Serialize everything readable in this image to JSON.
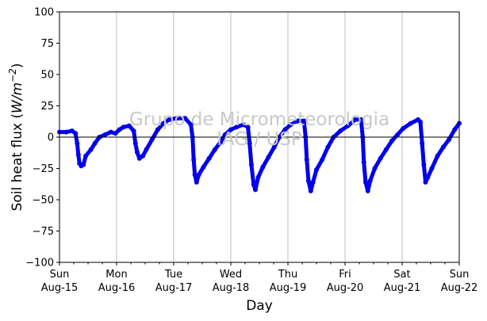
{
  "chart_data": {
    "type": "scatter",
    "title": "",
    "xlabel": "Day",
    "ylabel": "Soil heat flux (W/m⁻²)",
    "ylabel_parts": {
      "prefix": "Soil heat flux (",
      "italic": "W/m",
      "sup": "−2",
      "suffix": ")"
    },
    "ylim": [
      -100,
      100
    ],
    "xlim_days": [
      0,
      7
    ],
    "yticks": [
      -100,
      -75,
      -50,
      -25,
      0,
      25,
      50,
      75,
      100
    ],
    "xticks": [
      {
        "day": 0,
        "line1": "Sun",
        "line2": "Aug-15"
      },
      {
        "day": 1,
        "line1": "Mon",
        "line2": "Aug-16"
      },
      {
        "day": 2,
        "line1": "Tue",
        "line2": "Aug-17"
      },
      {
        "day": 3,
        "line1": "Wed",
        "line2": "Aug-18"
      },
      {
        "day": 4,
        "line1": "Thu",
        "line2": "Aug-19"
      },
      {
        "day": 5,
        "line1": "Fri",
        "line2": "Aug-20"
      },
      {
        "day": 6,
        "line1": "Sat",
        "line2": "Aug-21"
      },
      {
        "day": 7,
        "line1": "Sun",
        "line2": "Aug-22"
      }
    ],
    "grid": "vertical",
    "zero_line": true,
    "series": [
      {
        "color": "#0000ee",
        "points": [
          [
            0.0,
            4
          ],
          [
            0.12,
            4
          ],
          [
            0.22,
            5
          ],
          [
            0.28,
            3
          ],
          [
            0.31,
            -5
          ],
          [
            0.33,
            -14
          ],
          [
            0.35,
            -21
          ],
          [
            0.38,
            -23
          ],
          [
            0.42,
            -22
          ],
          [
            0.46,
            -15
          ],
          [
            0.55,
            -10
          ],
          [
            0.62,
            -5
          ],
          [
            0.7,
            0
          ],
          [
            0.8,
            2
          ],
          [
            0.9,
            4
          ],
          [
            0.98,
            3
          ],
          [
            1.05,
            6
          ],
          [
            1.12,
            8
          ],
          [
            1.22,
            9
          ],
          [
            1.3,
            5
          ],
          [
            1.33,
            -5
          ],
          [
            1.36,
            -12
          ],
          [
            1.4,
            -17
          ],
          [
            1.46,
            -15
          ],
          [
            1.52,
            -10
          ],
          [
            1.62,
            -2
          ],
          [
            1.72,
            6
          ],
          [
            1.82,
            11
          ],
          [
            1.92,
            14
          ],
          [
            2.05,
            15
          ],
          [
            2.2,
            15
          ],
          [
            2.3,
            10
          ],
          [
            2.33,
            0
          ],
          [
            2.35,
            -18
          ],
          [
            2.37,
            -30
          ],
          [
            2.4,
            -36
          ],
          [
            2.44,
            -30
          ],
          [
            2.52,
            -24
          ],
          [
            2.62,
            -17
          ],
          [
            2.72,
            -10
          ],
          [
            2.82,
            -4
          ],
          [
            2.9,
            2
          ],
          [
            3.0,
            6
          ],
          [
            3.1,
            8
          ],
          [
            3.22,
            10
          ],
          [
            3.3,
            8
          ],
          [
            3.33,
            -5
          ],
          [
            3.36,
            -22
          ],
          [
            3.4,
            -38
          ],
          [
            3.43,
            -42
          ],
          [
            3.48,
            -32
          ],
          [
            3.56,
            -24
          ],
          [
            3.66,
            -16
          ],
          [
            3.76,
            -8
          ],
          [
            3.85,
            0
          ],
          [
            3.95,
            6
          ],
          [
            4.05,
            10
          ],
          [
            4.18,
            13
          ],
          [
            4.28,
            13
          ],
          [
            4.31,
            0
          ],
          [
            4.33,
            -18
          ],
          [
            4.36,
            -35
          ],
          [
            4.4,
            -43
          ],
          [
            4.44,
            -36
          ],
          [
            4.5,
            -26
          ],
          [
            4.6,
            -18
          ],
          [
            4.7,
            -8
          ],
          [
            4.8,
            0
          ],
          [
            4.92,
            5
          ],
          [
            5.05,
            9
          ],
          [
            5.18,
            14
          ],
          [
            5.28,
            14
          ],
          [
            5.31,
            0
          ],
          [
            5.33,
            -20
          ],
          [
            5.36,
            -36
          ],
          [
            5.4,
            -43
          ],
          [
            5.44,
            -35
          ],
          [
            5.52,
            -25
          ],
          [
            5.62,
            -17
          ],
          [
            5.72,
            -10
          ],
          [
            5.82,
            -3
          ],
          [
            5.92,
            2
          ],
          [
            6.02,
            7
          ],
          [
            6.15,
            11
          ],
          [
            6.28,
            14
          ],
          [
            6.32,
            12
          ],
          [
            6.35,
            -5
          ],
          [
            6.38,
            -22
          ],
          [
            6.41,
            -36
          ],
          [
            6.45,
            -32
          ],
          [
            6.52,
            -25
          ],
          [
            6.62,
            -15
          ],
          [
            6.72,
            -8
          ],
          [
            6.82,
            -2
          ],
          [
            6.92,
            6
          ],
          [
            7.0,
            11
          ]
        ]
      }
    ],
    "watermark_line1": "Grupo de Micrometeorologia",
    "watermark_line2": "IAG / USP"
  }
}
